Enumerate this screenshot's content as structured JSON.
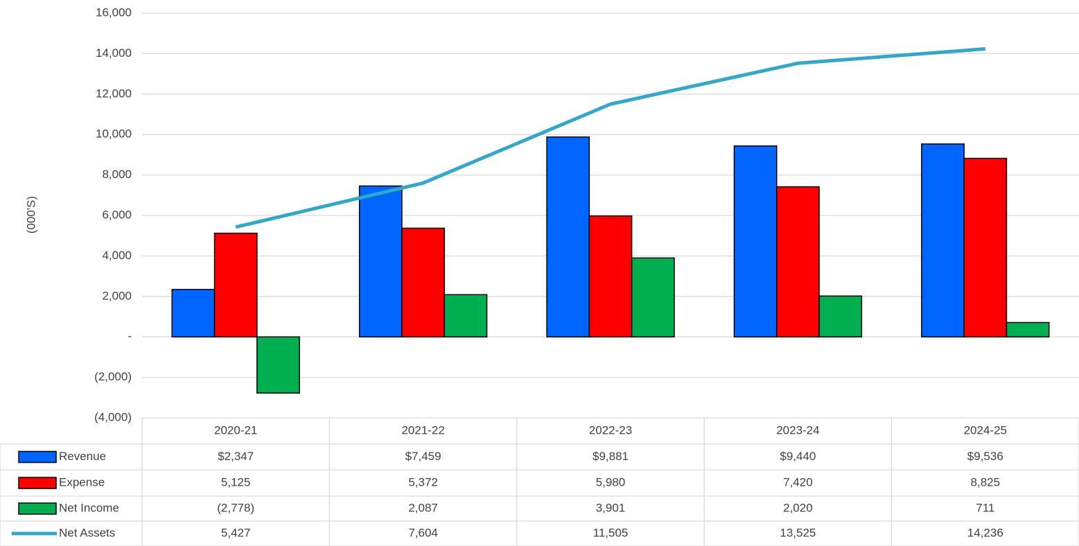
{
  "chart_data": {
    "type": "bar",
    "y_label": "(000'S)",
    "categories": [
      "2020-21",
      "2021-22",
      "2022-23",
      "2023-24",
      "2024-25"
    ],
    "series": [
      {
        "name": "Revenue",
        "color": "#0066ff",
        "values": [
          2347,
          7459,
          9881,
          9440,
          9536
        ],
        "value_labels": [
          "$2,347",
          "$7,459",
          "$9,881",
          "$9,440",
          "$9,536"
        ]
      },
      {
        "name": "Expense",
        "color": "#ff0000",
        "values": [
          5125,
          5372,
          5980,
          7420,
          8825
        ],
        "value_labels": [
          "5,125",
          "5,372",
          "5,980",
          "7,420",
          "8,825"
        ]
      },
      {
        "name": "Net Income",
        "color": "#00b050",
        "values": [
          -2778,
          2087,
          3901,
          2020,
          711
        ],
        "value_labels": [
          "(2,778)",
          "2,087",
          "3,901",
          "2,020",
          "711"
        ]
      },
      {
        "name": "Net Assets",
        "type": "line",
        "color": "#31a7cc",
        "values": [
          5427,
          7604,
          11505,
          13525,
          14236
        ],
        "value_labels": [
          "5,427",
          "7,604",
          "11,505",
          "13,525",
          "14,236"
        ]
      }
    ],
    "ylim": [
      -4000,
      16000
    ],
    "yticks": [
      {
        "value": -4000,
        "label": "(4,000)"
      },
      {
        "value": -2000,
        "label": "(2,000)"
      },
      {
        "value": 0,
        "label": "-"
      },
      {
        "value": 2000,
        "label": "2,000"
      },
      {
        "value": 4000,
        "label": "4,000"
      },
      {
        "value": 6000,
        "label": "6,000"
      },
      {
        "value": 8000,
        "label": "8,000"
      },
      {
        "value": 10000,
        "label": "10,000"
      },
      {
        "value": 12000,
        "label": "12,000"
      },
      {
        "value": 14000,
        "label": "14,000"
      },
      {
        "value": 16000,
        "label": "16,000"
      }
    ],
    "grid": true
  }
}
